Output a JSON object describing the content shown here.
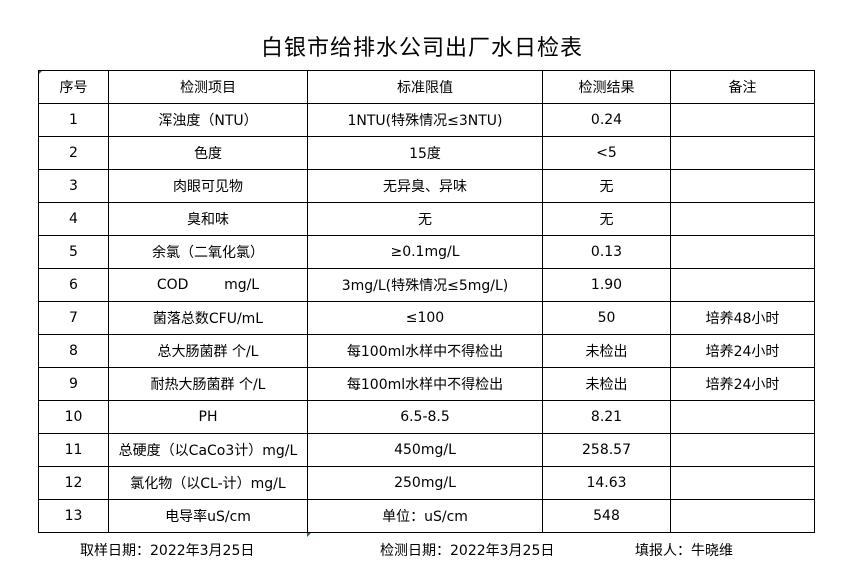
{
  "title": "白银市给排水公司出厂水日检表",
  "table": {
    "headers": [
      "序号",
      "检测项目",
      "标准限值",
      "检测结果",
      "备注"
    ],
    "rows": [
      [
        "1",
        "浑浊度（NTU）",
        "1NTU(特殊情况≤3NTU)",
        "0.24",
        ""
      ],
      [
        "2",
        "色度",
        "15度",
        "<5",
        ""
      ],
      [
        "3",
        "肉眼可见物",
        "无异臭、异味",
        "无",
        ""
      ],
      [
        "4",
        "臭和味",
        "无",
        "无",
        ""
      ],
      [
        "5",
        "余氯（二氧化氯）",
        "≥0.1mg/L",
        "0.13",
        ""
      ],
      [
        "6",
        "COD        mg/L",
        "3mg/L(特殊情况≤5mg/L)",
        "1.90",
        ""
      ],
      [
        "7",
        "菌落总数CFU/mL",
        "≤100",
        "50",
        "培养48小时"
      ],
      [
        "8",
        "总大肠菌群 个/L",
        "每100ml水样中不得检出",
        "未检出",
        "培养24小时"
      ],
      [
        "9",
        "耐热大肠菌群 个/L",
        "每100ml水样中不得检出",
        "未检出",
        "培养24小时"
      ],
      [
        "10",
        "PH",
        "6.5-8.5",
        "8.21",
        ""
      ],
      [
        "11",
        "总硬度（以CaCo3计）mg/L",
        "450mg/L",
        "258.57",
        ""
      ],
      [
        "12",
        "氯化物（以CL-计）mg/L",
        "250mg/L",
        "14.63",
        ""
      ],
      [
        "13",
        "电导率uS/cm",
        "单位：uS/cm",
        "548",
        ""
      ]
    ]
  },
  "footer": {
    "sampling_date": "取样日期：2022年3月25日",
    "testing_date": "检测日期：2022年3月25日",
    "reporter": "填报人：牛晓维"
  }
}
